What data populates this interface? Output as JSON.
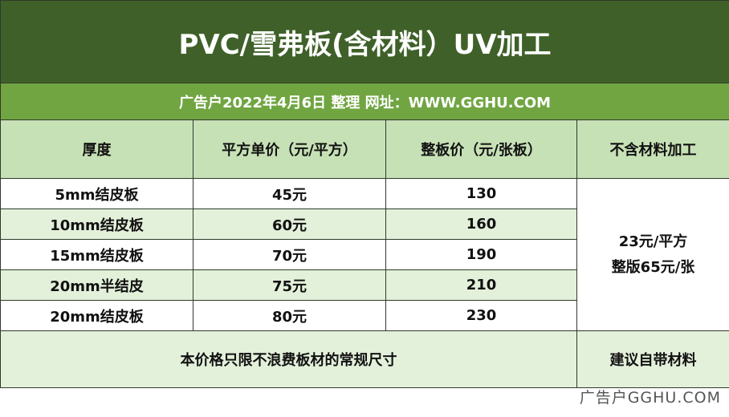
{
  "header": {
    "title": "PVC/雪弗板(含材料）UV加工",
    "subtitle": "广告户2022年4月6日  整理  网址：WWW.GGHU.COM"
  },
  "table": {
    "columns": [
      "厚度",
      "平方单价（元/平方）",
      "整板价（元/张板）",
      "不含材料加工"
    ],
    "rows": [
      [
        "5mm结皮板",
        "45元",
        "130"
      ],
      [
        "10mm结皮板",
        "60元",
        "160"
      ],
      [
        "15mm结皮板",
        "70元",
        "190"
      ],
      [
        "20mm半结皮",
        "75元",
        "210"
      ],
      [
        "20mm结皮板",
        "80元",
        "230"
      ]
    ],
    "merged_cell": [
      "23元/平方",
      "整版65元/张"
    ]
  },
  "footer": {
    "note": "本价格只限不浪费板材的常规尺寸",
    "advice": "建议自带材料"
  },
  "watermark": "广告户GGHU.COM"
}
